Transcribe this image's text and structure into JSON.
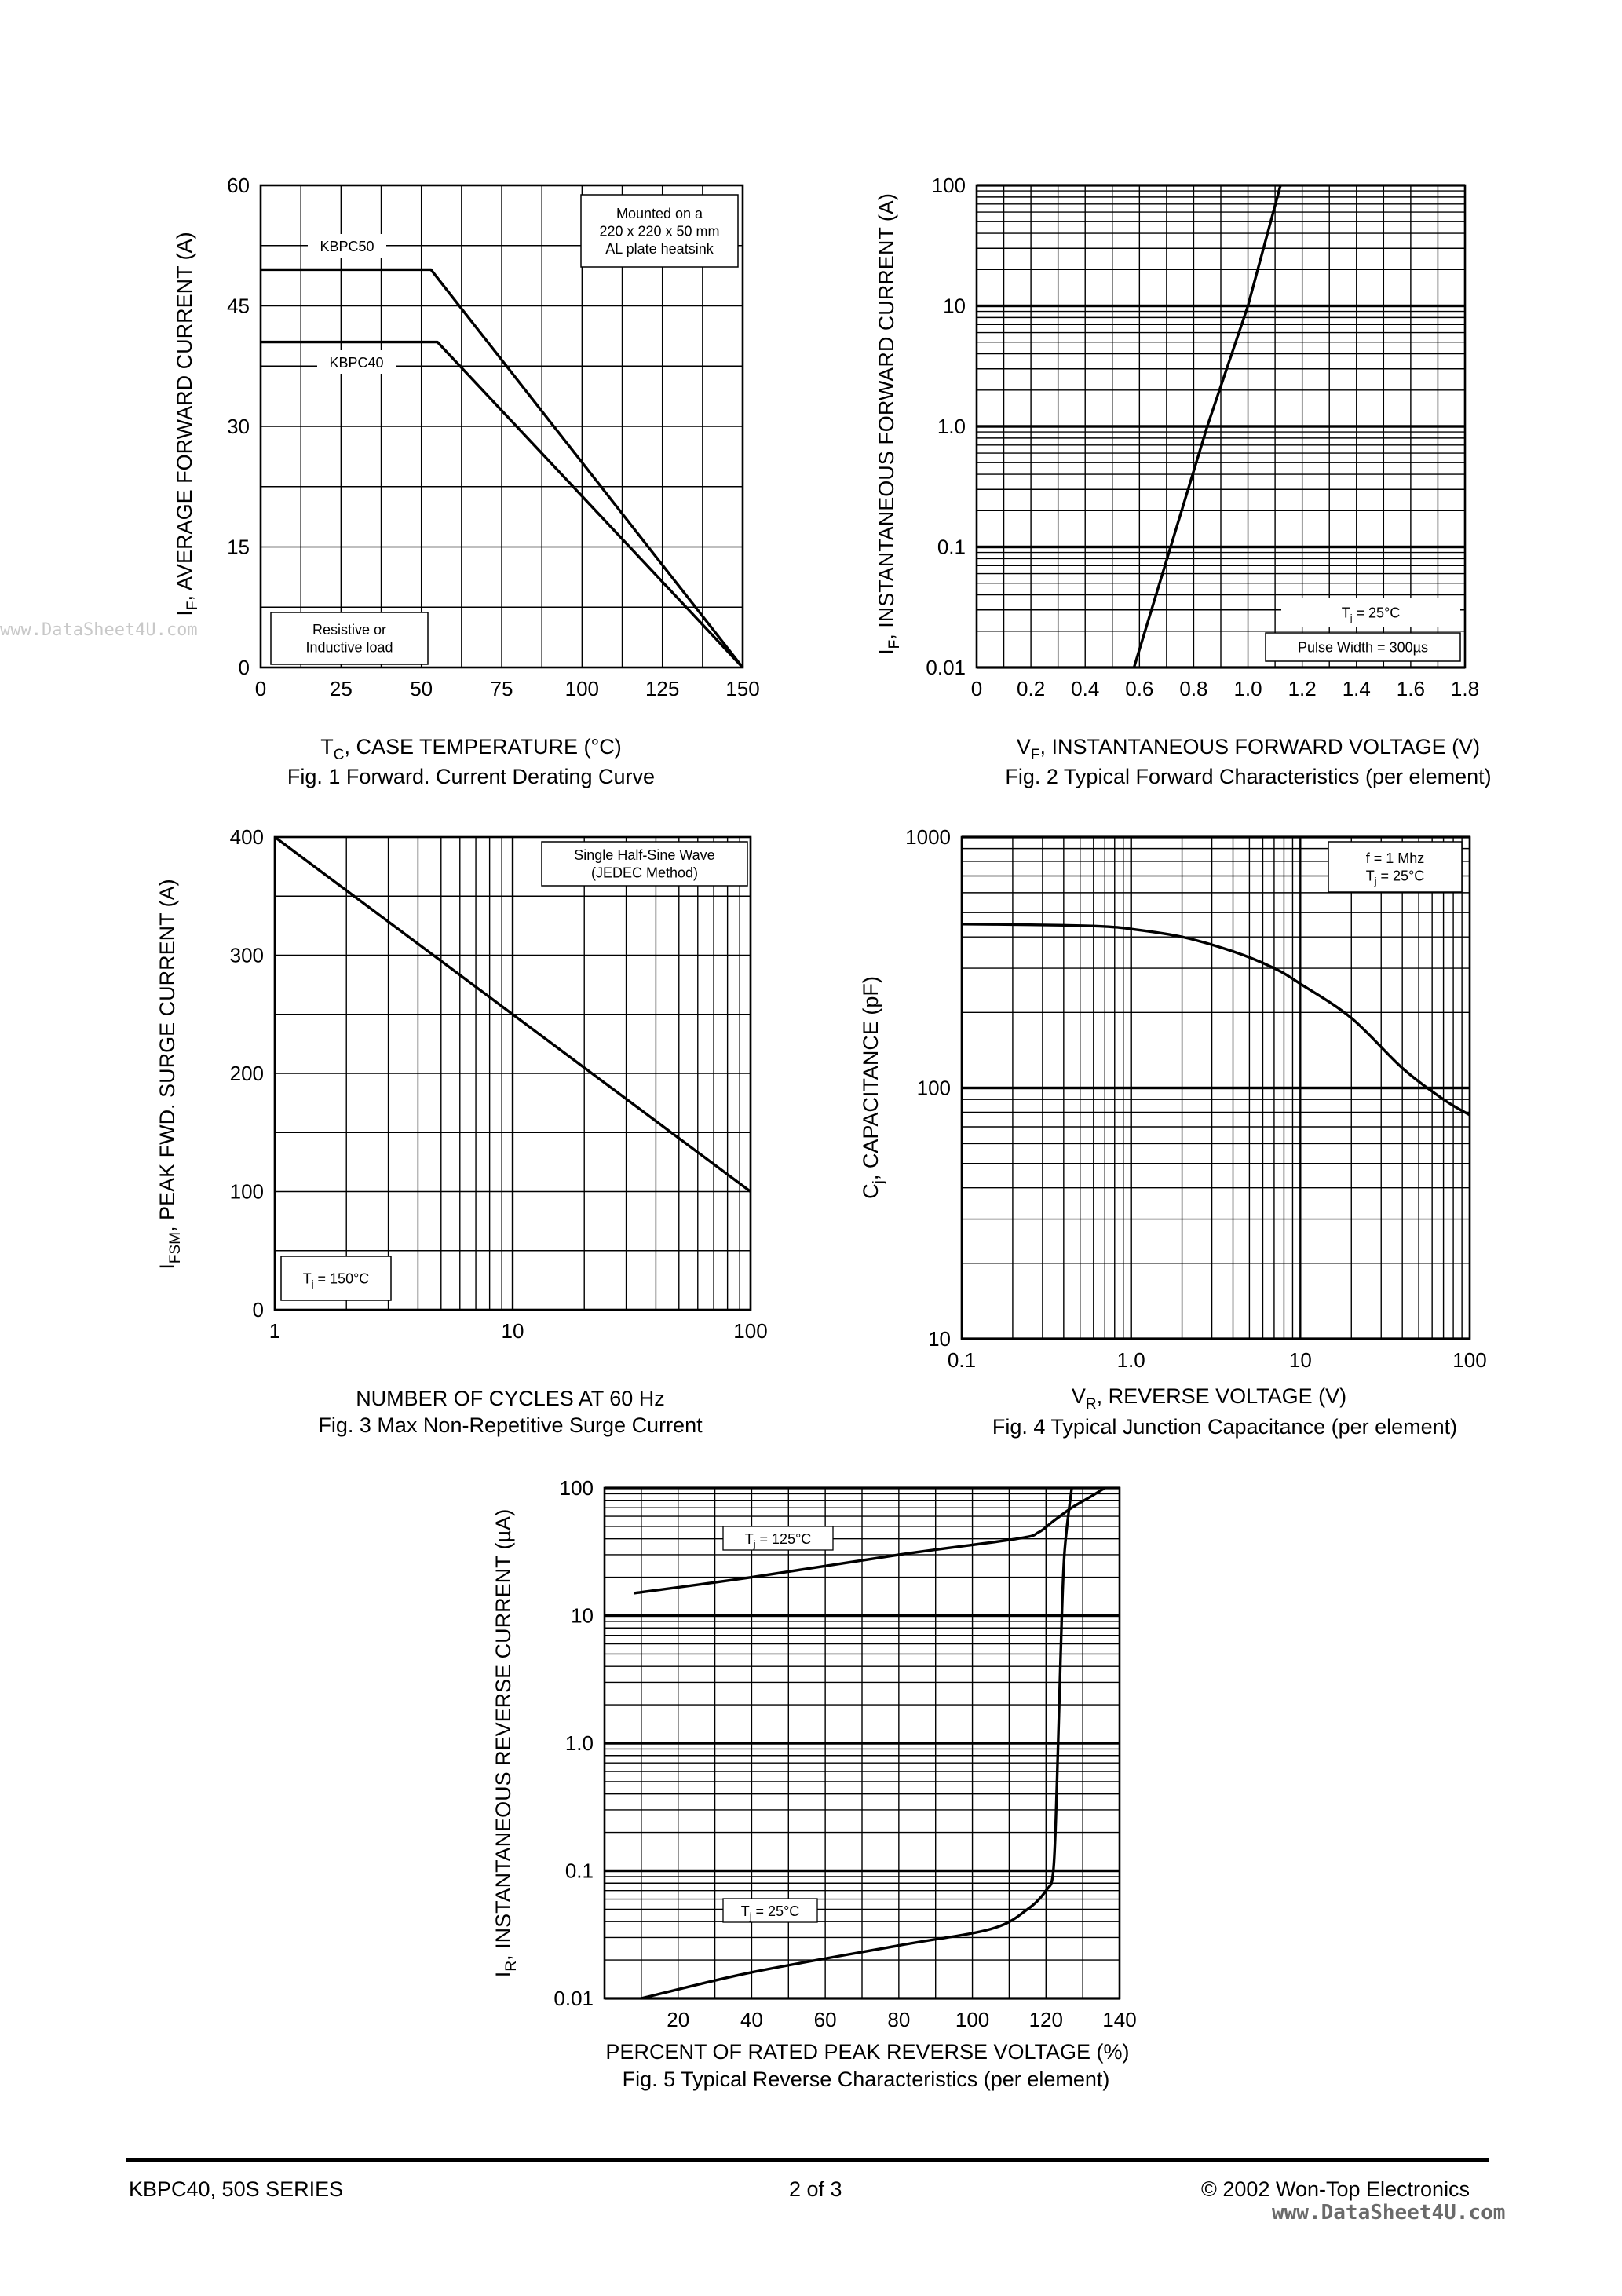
{
  "watermark_left": "www.DataSheet4U.com",
  "footer": {
    "series": "KBPC40, 50S SERIES",
    "page": "2 of 3",
    "copyright": "© 2002 Won-Top Electronics",
    "watermark_url": "www.DataSheet4U.com"
  },
  "chart_data": [
    {
      "id": "fig1",
      "type": "line",
      "caption": "Fig. 1  Forward. Current Derating Curve",
      "xlabel_main": "T",
      "xlabel_sub": "C",
      "xlabel_rest": ", CASE TEMPERATURE (°C)",
      "ylabel_main": "I",
      "ylabel_sub": "F",
      "ylabel_rest": ", AVERAGE FORWARD CURRENT (A)",
      "xscale": "linear",
      "yscale": "linear",
      "xlim": [
        0,
        150
      ],
      "ylim": [
        0,
        60
      ],
      "xticks": [
        0,
        25,
        50,
        75,
        100,
        125,
        150
      ],
      "yticks": [
        0,
        15,
        30,
        45,
        60
      ],
      "xtick_labels": [
        "0",
        "25",
        "50",
        "75",
        "100",
        "125",
        "150"
      ],
      "ytick_labels": [
        "0",
        "15",
        "30",
        "45",
        "60"
      ],
      "grid": true,
      "series": [
        {
          "name": "KBPC50",
          "x": [
            0,
            53,
            150
          ],
          "y": [
            49.5,
            49.5,
            0
          ]
        },
        {
          "name": "KBPC40",
          "x": [
            0,
            55,
            150
          ],
          "y": [
            40.5,
            40.5,
            0
          ]
        }
      ],
      "annotations": [
        {
          "lines": [
            "Mounted on a",
            "220 x 220 x 50 mm",
            "AL plate heatsink"
          ],
          "pos": "top-right"
        },
        {
          "lines": [
            "Resistive or",
            "Inductive load"
          ],
          "pos": "bottom-left"
        }
      ]
    },
    {
      "id": "fig2",
      "type": "line",
      "caption": "Fig. 2  Typical Forward Characteristics (per element)",
      "xlabel_main": "V",
      "xlabel_sub": "F",
      "xlabel_rest": ", INSTANTANEOUS FORWARD VOLTAGE (V)",
      "ylabel_main": "I",
      "ylabel_sub": "F",
      "ylabel_rest": ", INSTANTANEOUS FORWARD CURRENT (A)",
      "xscale": "linear",
      "yscale": "log",
      "xlim": [
        0,
        1.8
      ],
      "ylim": [
        0.01,
        100
      ],
      "xticks": [
        0,
        0.2,
        0.4,
        0.6,
        0.8,
        1.0,
        1.2,
        1.4,
        1.6,
        1.8
      ],
      "yticks": [
        0.01,
        0.1,
        1,
        10,
        100
      ],
      "xtick_labels": [
        "0",
        "0.2",
        "0.4",
        "0.6",
        "0.8",
        "1.0",
        "1.2",
        "1.4",
        "1.6",
        "1.8"
      ],
      "ytick_labels": [
        "0.01",
        "0.1",
        "1.0",
        "10",
        "100"
      ],
      "grid": true,
      "series": [
        {
          "x": [
            0.58,
            0.85,
            1.0,
            1.12
          ],
          "y": [
            0.01,
            1.0,
            10,
            100
          ]
        }
      ],
      "annotations": [
        {
          "lines": [
            "Tj = 25°C"
          ],
          "pos": "bottom-right"
        },
        {
          "lines": [
            "Pulse Width = 300µs"
          ],
          "pos": "bottom-right"
        }
      ]
    },
    {
      "id": "fig3",
      "type": "line",
      "caption": "Fig. 3  Max Non-Repetitive Surge Current",
      "xlabel_main": "NUMBER OF CYCLES AT 60 Hz",
      "xlabel_sub": "",
      "xlabel_rest": "",
      "ylabel_main": "I",
      "ylabel_sub": "FSM",
      "ylabel_rest": ", PEAK FWD. SURGE CURRENT (A)",
      "xscale": "log",
      "yscale": "linear",
      "xlim": [
        1,
        100
      ],
      "ylim": [
        0,
        400
      ],
      "xticks": [
        1,
        10,
        100
      ],
      "yticks": [
        0,
        100,
        200,
        300,
        400
      ],
      "xtick_labels": [
        "1",
        "10",
        "100"
      ],
      "ytick_labels": [
        "0",
        "100",
        "200",
        "300",
        "400"
      ],
      "grid": true,
      "series": [
        {
          "x": [
            1,
            100
          ],
          "y": [
            400,
            100
          ]
        }
      ],
      "annotations": [
        {
          "lines": [
            "Single Half-Sine Wave",
            "(JEDEC Method)"
          ],
          "pos": "top-right"
        },
        {
          "lines": [
            "Tj = 150°C"
          ],
          "pos": "bottom-left"
        }
      ]
    },
    {
      "id": "fig4",
      "type": "line",
      "caption": "Fig. 4  Typical Junction Capacitance (per element)",
      "xlabel_main": "V",
      "xlabel_sub": "R",
      "xlabel_rest": ", REVERSE VOLTAGE (V)",
      "ylabel_main": "C",
      "ylabel_sub": "j",
      "ylabel_rest": ", CAPACITANCE (pF)",
      "xscale": "log",
      "yscale": "log",
      "xlim": [
        0.1,
        100
      ],
      "ylim": [
        10,
        1000
      ],
      "xticks": [
        0.1,
        1,
        10,
        100
      ],
      "yticks": [
        10,
        100,
        1000
      ],
      "xtick_labels": [
        "0.1",
        "1.0",
        "10",
        "100"
      ],
      "ytick_labels": [
        "10",
        "100",
        "1000"
      ],
      "grid": true,
      "series": [
        {
          "x": [
            0.1,
            0.2,
            0.4,
            0.7,
            1.0,
            2.0,
            4.0,
            7.0,
            10,
            20,
            40,
            70,
            100
          ],
          "y": [
            450,
            448,
            445,
            440,
            430,
            400,
            350,
            300,
            260,
            190,
            120,
            90,
            78
          ]
        }
      ],
      "annotations": [
        {
          "lines": [
            "f = 1 Mhz",
            "Tj = 25°C"
          ],
          "pos": "top-right"
        }
      ]
    },
    {
      "id": "fig5",
      "type": "line",
      "caption": "Fig. 5  Typical Reverse Characteristics (per element)",
      "xlabel_main": "PERCENT OF RATED PEAK  REVERSE VOLTAGE (%)",
      "xlabel_sub": "",
      "xlabel_rest": "",
      "ylabel_main": "I",
      "ylabel_sub": "R",
      "ylabel_rest": ", INSTANTANEOUS REVERSE CURRENT (µA)",
      "xscale": "linear",
      "yscale": "log",
      "xlim": [
        0,
        140
      ],
      "ylim": [
        0.01,
        100
      ],
      "xticks": [
        20,
        40,
        60,
        80,
        100,
        120,
        140
      ],
      "yticks": [
        0.01,
        0.1,
        1,
        10,
        100
      ],
      "xtick_labels": [
        "20",
        "40",
        "60",
        "80",
        "100",
        "120",
        "140"
      ],
      "ytick_labels": [
        "0.01",
        "0.1",
        "1.0",
        "10",
        "100"
      ],
      "grid": true,
      "series": [
        {
          "name": "Tj = 125°C",
          "x": [
            8,
            40,
            80,
            112,
            118,
            122,
            127,
            132,
            136
          ],
          "y": [
            15,
            20,
            30,
            40,
            45,
            55,
            70,
            85,
            100
          ]
        },
        {
          "name": "Tj = 25°C",
          "x": [
            10,
            40,
            80,
            105,
            115,
            120,
            122,
            123,
            124,
            125,
            127
          ],
          "y": [
            0.01,
            0.016,
            0.026,
            0.035,
            0.05,
            0.07,
            0.1,
            0.5,
            5,
            30,
            100
          ]
        }
      ],
      "annotations": []
    }
  ]
}
